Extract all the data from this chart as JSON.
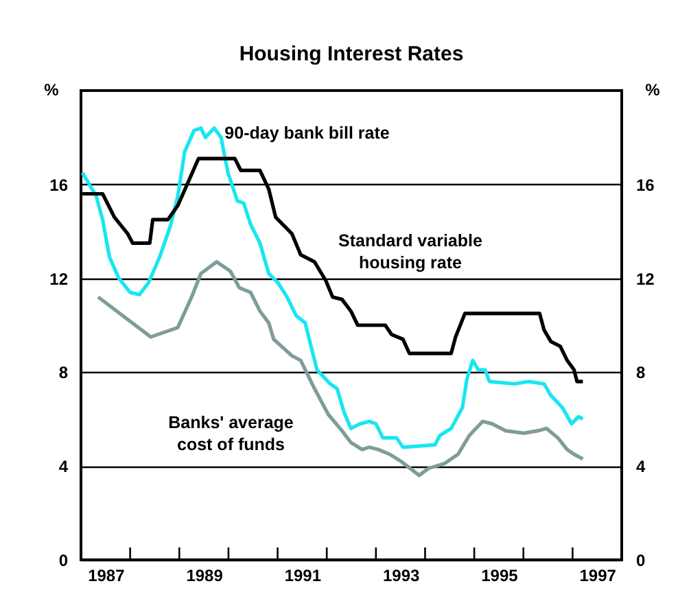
{
  "chart_data": {
    "type": "line",
    "title": "Housing Interest Rates",
    "ylabel": "%",
    "y2label": "%",
    "xlim": [
      1987,
      1998
    ],
    "xticks": [
      {
        "value": 1987.5,
        "label": "1987"
      },
      {
        "value": 1988,
        "label": null
      },
      {
        "value": 1989,
        "label": null
      },
      {
        "value": 1989.5,
        "label": "1989"
      },
      {
        "value": 1990,
        "label": null
      },
      {
        "value": 1991,
        "label": null
      },
      {
        "value": 1991.5,
        "label": "1991"
      },
      {
        "value": 1992,
        "label": null
      },
      {
        "value": 1993,
        "label": null
      },
      {
        "value": 1993.5,
        "label": "1993"
      },
      {
        "value": 1994,
        "label": null
      },
      {
        "value": 1995,
        "label": null
      },
      {
        "value": 1995.5,
        "label": "1995"
      },
      {
        "value": 1996,
        "label": null
      },
      {
        "value": 1997,
        "label": null
      },
      {
        "value": 1997.5,
        "label": "1997"
      }
    ],
    "ylim": [
      0,
      20
    ],
    "yticks": [
      0,
      4,
      8,
      12,
      16
    ],
    "y2lim": [
      0,
      20
    ],
    "y2ticks": [
      0,
      4,
      8,
      12,
      16
    ],
    "grid": "y",
    "line_style": "solid",
    "marker": "none",
    "series": [
      {
        "name": "90-day bank bill rate",
        "color": "#19e6f0",
        "x": [
          1987.03,
          1987.31,
          1987.44,
          1987.58,
          1987.77,
          1988.0,
          1988.19,
          1988.37,
          1988.6,
          1988.83,
          1988.97,
          1989.11,
          1989.3,
          1989.44,
          1989.53,
          1989.71,
          1989.85,
          1989.99,
          1990.18,
          1990.31,
          1990.45,
          1990.64,
          1990.82,
          1991.01,
          1991.19,
          1991.38,
          1991.56,
          1991.8,
          1992.07,
          1992.21,
          1992.35,
          1992.49,
          1992.68,
          1992.86,
          1993.0,
          1993.14,
          1993.42,
          1993.55,
          1994.2,
          1994.3,
          1994.53,
          1994.76,
          1994.85,
          1994.97,
          1995.08,
          1995.22,
          1995.31,
          1995.82,
          1996.1,
          1996.42,
          1996.56,
          1996.79,
          1996.98,
          1997.12,
          1997.21
        ],
        "values": [
          16.5,
          15.5,
          14.5,
          12.9,
          12.0,
          11.4,
          11.3,
          11.8,
          12.9,
          14.3,
          15.5,
          17.4,
          18.3,
          18.4,
          18.0,
          18.4,
          18.0,
          16.5,
          15.3,
          15.2,
          14.3,
          13.5,
          12.2,
          11.8,
          11.2,
          10.4,
          10.1,
          8.1,
          7.5,
          7.3,
          6.3,
          5.6,
          5.8,
          5.9,
          5.8,
          5.2,
          5.2,
          4.8,
          4.9,
          5.3,
          5.6,
          6.5,
          7.7,
          8.5,
          8.1,
          8.1,
          7.6,
          7.5,
          7.6,
          7.5,
          7.0,
          6.5,
          5.8,
          6.1,
          6.0
        ]
      },
      {
        "name": "Standard variable housing rate",
        "color": "#000000",
        "x": [
          1987.03,
          1987.44,
          1987.68,
          1987.95,
          1988.05,
          1988.4,
          1988.46,
          1988.77,
          1988.97,
          1989.16,
          1989.39,
          1990.13,
          1990.25,
          1990.64,
          1990.82,
          1990.96,
          1991.29,
          1991.47,
          1991.75,
          1991.98,
          1992.12,
          1992.31,
          1992.49,
          1992.63,
          1993.19,
          1993.32,
          1993.55,
          1993.68,
          1994.53,
          1994.62,
          1994.81,
          1996.33,
          1996.42,
          1996.56,
          1996.75,
          1996.89,
          1997.03,
          1997.09,
          1997.21
        ],
        "values": [
          15.6,
          15.6,
          14.6,
          13.9,
          13.5,
          13.5,
          14.5,
          14.5,
          15.1,
          16.0,
          17.1,
          17.1,
          16.6,
          16.6,
          15.8,
          14.6,
          13.9,
          13.0,
          12.7,
          11.9,
          11.2,
          11.1,
          10.6,
          10.0,
          10.0,
          9.6,
          9.4,
          8.8,
          8.8,
          9.5,
          10.5,
          10.5,
          9.8,
          9.3,
          9.1,
          8.5,
          8.1,
          7.6,
          7.6
        ]
      },
      {
        "name": "Banks' average cost of funds",
        "color": "#7f9c9a",
        "x": [
          1987.35,
          1988.42,
          1988.97,
          1989.25,
          1989.44,
          1989.76,
          1990.04,
          1990.22,
          1990.45,
          1990.64,
          1990.82,
          1990.92,
          1991.29,
          1991.47,
          1991.75,
          1992.03,
          1992.31,
          1992.49,
          1992.72,
          1992.86,
          1993.05,
          1993.28,
          1993.51,
          1993.88,
          1994.07,
          1994.39,
          1994.67,
          1994.9,
          1995.17,
          1995.36,
          1995.64,
          1996.01,
          1996.29,
          1996.47,
          1996.7,
          1996.89,
          1997.03,
          1997.21
        ],
        "values": [
          11.2,
          9.5,
          9.9,
          11.2,
          12.2,
          12.7,
          12.3,
          11.6,
          11.4,
          10.6,
          10.1,
          9.4,
          8.7,
          8.5,
          7.3,
          6.2,
          5.5,
          5.0,
          4.7,
          4.8,
          4.7,
          4.5,
          4.2,
          3.6,
          3.9,
          4.1,
          4.5,
          5.3,
          5.9,
          5.8,
          5.5,
          5.4,
          5.5,
          5.6,
          5.2,
          4.7,
          4.5,
          4.3
        ]
      }
    ]
  }
}
